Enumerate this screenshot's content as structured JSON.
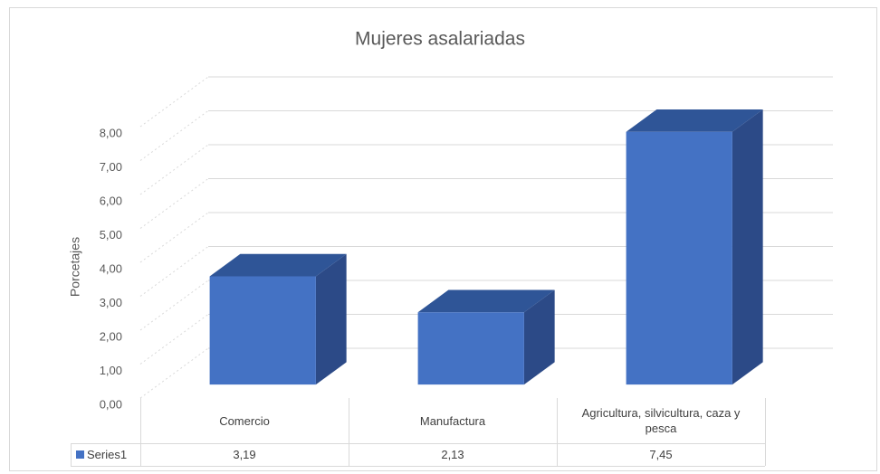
{
  "chart_data": {
    "type": "bar3d",
    "title": "Mujeres asalariadas",
    "y_label": "Porcetajes",
    "categories": [
      "Comercio",
      "Manufactura",
      "Agricultura, silvicultura, caza y pesca"
    ],
    "series": [
      {
        "name": "Series1",
        "color": "#4472c4",
        "values": [
          3.19,
          2.13,
          7.45
        ],
        "value_labels": [
          "3,19",
          "2,13",
          "7,45"
        ]
      }
    ],
    "ylim": [
      0,
      8
    ],
    "yticks": [
      {
        "value": 0,
        "label": "0,00"
      },
      {
        "value": 1,
        "label": "1,00"
      },
      {
        "value": 2,
        "label": "2,00"
      },
      {
        "value": 3,
        "label": "3,00"
      },
      {
        "value": 4,
        "label": "4,00"
      },
      {
        "value": 5,
        "label": "5,00"
      },
      {
        "value": 6,
        "label": "6,00"
      },
      {
        "value": 7,
        "label": "7,00"
      },
      {
        "value": 8,
        "label": "8,00"
      }
    ],
    "grid": true
  }
}
